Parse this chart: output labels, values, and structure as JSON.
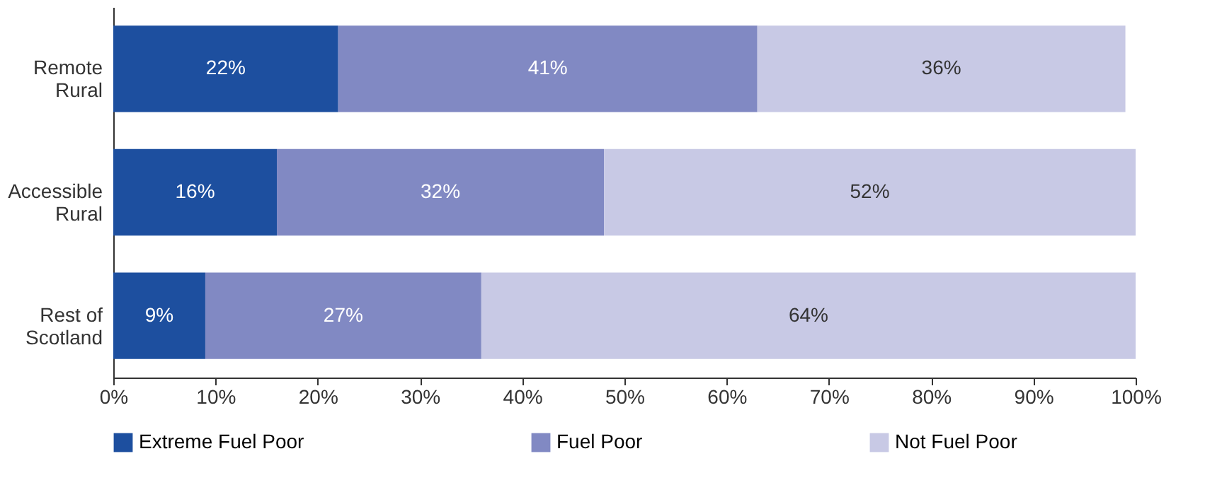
{
  "chart_data": {
    "type": "bar",
    "orientation": "horizontal",
    "stacked": true,
    "legend": "bottom",
    "grid": false,
    "categories": [
      "Remote\nRural",
      "Accessible\nRural",
      "Rest of\nScotland"
    ],
    "series": [
      {
        "name": "Extreme Fuel Poor",
        "color": "#1d4f9f",
        "values": [
          22,
          16,
          9
        ],
        "value_labels": [
          "22%",
          "16%",
          "9%"
        ]
      },
      {
        "name": "Fuel Poor",
        "color": "#8189c3",
        "values": [
          41,
          32,
          27
        ],
        "value_labels": [
          "41%",
          "32%",
          "27%"
        ]
      },
      {
        "name": "Not Fuel Poor",
        "color": "#c8c9e5",
        "values": [
          36,
          52,
          64
        ],
        "value_labels": [
          "36%",
          "52%",
          "64%"
        ]
      }
    ],
    "xlim": [
      0,
      100
    ],
    "xticks": [
      {
        "value": 0,
        "label": "0%"
      },
      {
        "value": 10,
        "label": "10%"
      },
      {
        "value": 20,
        "label": "20%"
      },
      {
        "value": 30,
        "label": "30%"
      },
      {
        "value": 40,
        "label": "40%"
      },
      {
        "value": 50,
        "label": "50%"
      },
      {
        "value": 60,
        "label": "60%"
      },
      {
        "value": 70,
        "label": "70%"
      },
      {
        "value": 80,
        "label": "80%"
      },
      {
        "value": 90,
        "label": "90%"
      },
      {
        "value": 100,
        "label": "100%"
      }
    ]
  }
}
